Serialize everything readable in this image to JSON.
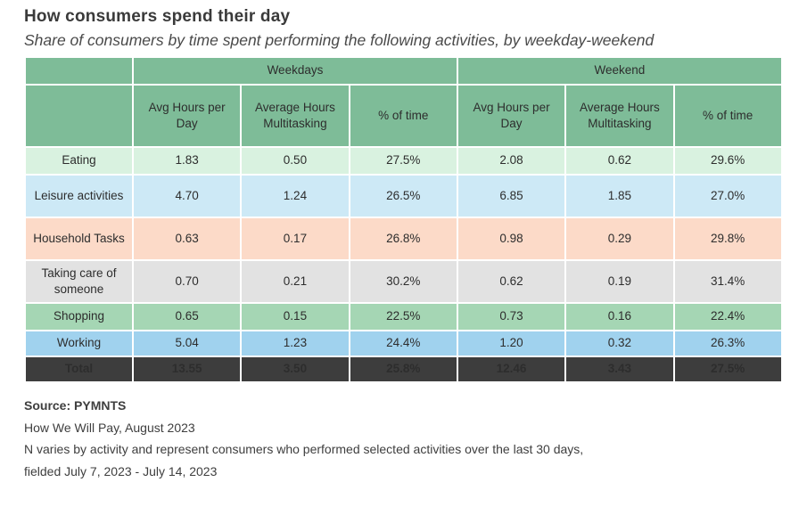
{
  "title": "How consumers spend their day",
  "subtitle": "Share of consumers by time spent performing the following activities, by weekday-weekend",
  "chart_data": {
    "type": "table",
    "title": "How consumers spend their day",
    "subtitle": "Share of consumers by time spent performing the following activities, by weekday-weekend",
    "group_headers": [
      "Weekdays",
      "Weekend"
    ],
    "sub_headers": [
      "Avg Hours per Day",
      "Average Hours Multitasking",
      "% of time",
      "Avg Hours per Day",
      "Average Hours Multitasking",
      "% of time"
    ],
    "rows": [
      {
        "label": "Eating",
        "values": [
          "1.83",
          "0.50",
          "27.5%",
          "2.08",
          "0.62",
          "29.6%"
        ]
      },
      {
        "label": "Leisure activities",
        "values": [
          "4.70",
          "1.24",
          "26.5%",
          "6.85",
          "1.85",
          "27.0%"
        ]
      },
      {
        "label": "Household Tasks",
        "values": [
          "0.63",
          "0.17",
          "26.8%",
          "0.98",
          "0.29",
          "29.8%"
        ]
      },
      {
        "label": "Taking care of someone",
        "values": [
          "0.70",
          "0.21",
          "30.2%",
          "0.62",
          "0.19",
          "31.4%"
        ]
      },
      {
        "label": "Shopping",
        "values": [
          "0.65",
          "0.15",
          "22.5%",
          "0.73",
          "0.16",
          "22.4%"
        ]
      },
      {
        "label": "Working",
        "values": [
          "5.04",
          "1.23",
          "24.4%",
          "1.20",
          "0.32",
          "26.3%"
        ]
      }
    ],
    "total": {
      "label": "Total",
      "values": [
        "13.55",
        "3.50",
        "25.8%",
        "12.46",
        "3.43",
        "27.5%"
      ]
    }
  },
  "colors": {
    "header_green": "#7ebc98",
    "row_eating": "#d9f2e0",
    "row_leisure": "#cde9f6",
    "row_household_tasks": "#fcdac8",
    "row_taking_care": "#e2e2e2",
    "row_shopping": "#a5d6b4",
    "row_working": "#a0d2ee",
    "total_background": "#3d3d3d",
    "total_text": "#ffffff"
  },
  "footer": {
    "source": "Source: PYMNTS",
    "publication": "How We Will Pay, August 2023",
    "note_line1": "N varies by activity and represent consumers who performed selected activities over the last 30 days,",
    "note_line2": "fielded July 7, 2023 - July 14, 2023"
  }
}
